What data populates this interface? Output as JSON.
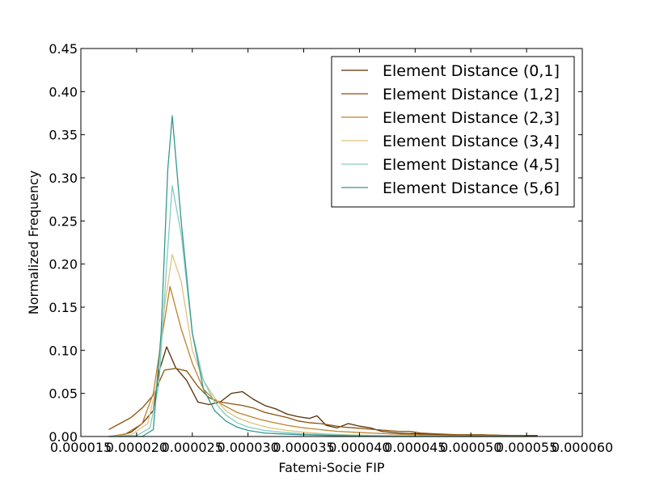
{
  "chart_data": {
    "type": "line",
    "title": "",
    "xlabel": "Fatemi-Socie FIP",
    "ylabel": "Normalized Frequency",
    "xlim": [
      1.5e-05,
      6e-05
    ],
    "ylim": [
      0,
      0.45
    ],
    "xticks": [
      "0.000015",
      "0.000020",
      "0.000025",
      "0.000030",
      "0.000035",
      "0.000040",
      "0.000045",
      "0.000050",
      "0.000055",
      "0.000060"
    ],
    "yticks": [
      "0.00",
      "0.05",
      "0.10",
      "0.15",
      "0.20",
      "0.25",
      "0.30",
      "0.35",
      "0.40",
      "0.45"
    ],
    "grid": false,
    "legend_position": "top-right",
    "series": [
      {
        "name": "Element Distance (0,1]",
        "color": "#543005",
        "x": [
          1.75e-05,
          1.85e-05,
          1.95e-05,
          2.05e-05,
          2.15e-05,
          2.2e-05,
          2.27e-05,
          2.35e-05,
          2.45e-05,
          2.55e-05,
          2.65e-05,
          2.75e-05,
          2.85e-05,
          2.95e-05,
          3.05e-05,
          3.15e-05,
          3.25e-05,
          3.35e-05,
          3.45e-05,
          3.55e-05,
          3.62e-05,
          3.7e-05,
          3.8e-05,
          3.9e-05,
          4e-05,
          4.1e-05,
          4.2e-05,
          4.35e-05,
          4.55e-05,
          4.8e-05,
          5.1e-05,
          5.4e-05,
          5.6e-05
        ],
        "values": [
          0.0,
          0.001,
          0.005,
          0.015,
          0.03,
          0.075,
          0.104,
          0.08,
          0.065,
          0.04,
          0.037,
          0.04,
          0.05,
          0.052,
          0.043,
          0.036,
          0.032,
          0.026,
          0.023,
          0.021,
          0.024,
          0.013,
          0.01,
          0.015,
          0.012,
          0.01,
          0.006,
          0.004,
          0.003,
          0.002,
          0.002,
          0.001,
          0.001
        ]
      },
      {
        "name": "Element Distance (1,2]",
        "color": "#8c510a",
        "x": [
          1.75e-05,
          1.85e-05,
          1.95e-05,
          2.05e-05,
          2.15e-05,
          2.25e-05,
          2.35e-05,
          2.45e-05,
          2.55e-05,
          2.65e-05,
          2.75e-05,
          2.85e-05,
          2.95e-05,
          3.05e-05,
          3.15e-05,
          3.25e-05,
          3.35e-05,
          3.45e-05,
          3.55e-05,
          3.65e-05,
          3.75e-05,
          3.85e-05,
          3.95e-05,
          4.05e-05,
          4.15e-05,
          4.25e-05,
          4.35e-05,
          4.45e-05,
          4.55e-05,
          4.7e-05,
          4.9e-05,
          5.1e-05,
          5.3e-05,
          5.5e-05
        ],
        "values": [
          0.008,
          0.015,
          0.022,
          0.033,
          0.048,
          0.077,
          0.079,
          0.076,
          0.058,
          0.045,
          0.04,
          0.038,
          0.036,
          0.033,
          0.028,
          0.025,
          0.022,
          0.018,
          0.016,
          0.015,
          0.013,
          0.011,
          0.01,
          0.009,
          0.008,
          0.007,
          0.006,
          0.006,
          0.004,
          0.003,
          0.002,
          0.002,
          0.001,
          0.001
        ]
      },
      {
        "name": "Element Distance (2,3]",
        "color": "#bf812d",
        "x": [
          1.75e-05,
          1.9e-05,
          2.05e-05,
          2.15e-05,
          2.22e-05,
          2.3e-05,
          2.4e-05,
          2.5e-05,
          2.6e-05,
          2.7e-05,
          2.8e-05,
          2.9e-05,
          3e-05,
          3.1e-05,
          3.2e-05,
          3.35e-05,
          3.5e-05,
          3.65e-05,
          3.8e-05,
          3.95e-05,
          4.1e-05,
          4.3e-05,
          4.5e-05,
          4.8e-05,
          5.1e-05,
          5.5e-05
        ],
        "values": [
          0.0,
          0.003,
          0.015,
          0.05,
          0.11,
          0.174,
          0.125,
          0.085,
          0.055,
          0.042,
          0.035,
          0.028,
          0.024,
          0.02,
          0.017,
          0.013,
          0.01,
          0.008,
          0.006,
          0.005,
          0.004,
          0.003,
          0.002,
          0.001,
          0.001,
          0.0
        ]
      },
      {
        "name": "Element Distance (3,4]",
        "color": "#dfc27d",
        "x": [
          1.75e-05,
          1.95e-05,
          2.1e-05,
          2.18e-05,
          2.25e-05,
          2.32e-05,
          2.4e-05,
          2.5e-05,
          2.6e-05,
          2.7e-05,
          2.8e-05,
          2.9e-05,
          3e-05,
          3.1e-05,
          3.2e-05,
          3.35e-05,
          3.5e-05,
          3.7e-05,
          3.9e-05,
          4.2e-05,
          4.5e-05,
          5e-05,
          5.5e-05
        ],
        "values": [
          0.0,
          0.002,
          0.015,
          0.06,
          0.15,
          0.211,
          0.18,
          0.1,
          0.065,
          0.045,
          0.03,
          0.022,
          0.017,
          0.013,
          0.01,
          0.007,
          0.005,
          0.003,
          0.002,
          0.001,
          0.001,
          0.0,
          0.0
        ]
      },
      {
        "name": "Element Distance (4,5]",
        "color": "#80cdc1",
        "x": [
          1.75e-05,
          2e-05,
          2.12e-05,
          2.2e-05,
          2.27e-05,
          2.32e-05,
          2.4e-05,
          2.5e-05,
          2.6e-05,
          2.7e-05,
          2.8e-05,
          2.9e-05,
          3e-05,
          3.15e-05,
          3.3e-05,
          3.5e-05,
          3.8e-05,
          4.2e-05,
          4.7e-05,
          5.5e-05
        ],
        "values": [
          0.0,
          0.001,
          0.01,
          0.06,
          0.2,
          0.291,
          0.235,
          0.12,
          0.065,
          0.04,
          0.025,
          0.016,
          0.011,
          0.007,
          0.005,
          0.003,
          0.002,
          0.001,
          0.0,
          0.0
        ]
      },
      {
        "name": "Element Distance (5,6]",
        "color": "#35978f",
        "x": [
          1.75e-05,
          2.05e-05,
          2.15e-05,
          2.22e-05,
          2.28e-05,
          2.32e-05,
          2.4e-05,
          2.5e-05,
          2.6e-05,
          2.7e-05,
          2.8e-05,
          2.9e-05,
          3e-05,
          3.15e-05,
          3.3e-05,
          3.5e-05,
          3.8e-05,
          4.2e-05,
          4.7e-05,
          5.5e-05
        ],
        "values": [
          0.0,
          0.0,
          0.008,
          0.12,
          0.31,
          0.372,
          0.25,
          0.12,
          0.055,
          0.03,
          0.018,
          0.011,
          0.007,
          0.004,
          0.003,
          0.002,
          0.001,
          0.0,
          0.0,
          0.0
        ]
      }
    ]
  }
}
